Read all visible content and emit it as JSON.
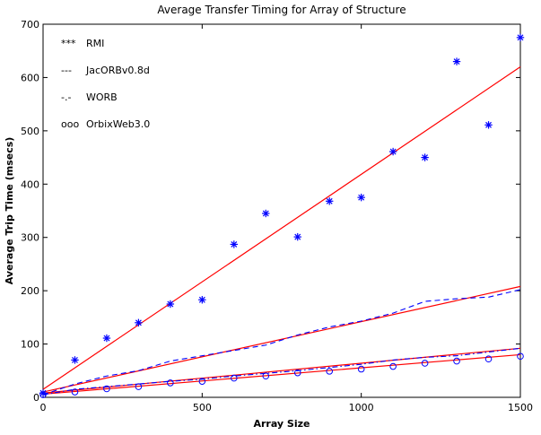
{
  "chart_data": {
    "type": "scatter",
    "title": "Average Transfer Timing for Array of Structure",
    "xlabel": "Array Size",
    "ylabel": "Average Trip Time (msecs)",
    "xlim": [
      0,
      1500
    ],
    "ylim": [
      0,
      700
    ],
    "xticks": [
      0,
      500,
      1000,
      1500
    ],
    "yticks": [
      0,
      100,
      200,
      300,
      400,
      500,
      600,
      700
    ],
    "xtick_labels": [
      "0",
      "500",
      "1000",
      "1500"
    ],
    "ytick_labels": [
      "0",
      "100",
      "200",
      "300",
      "400",
      "500",
      "600",
      "700"
    ],
    "grid": false,
    "legend_position": "top-left",
    "legend": [
      {
        "marker": "***",
        "label": "RMI"
      },
      {
        "marker": "---",
        "label": "JacORBv0.8d"
      },
      {
        "marker": "-.-",
        "label": "WORB"
      },
      {
        "marker": "ooo",
        "label": "OrbixWeb3.0"
      }
    ],
    "series": [
      {
        "name": "RMI",
        "style": "star",
        "color": "#0000ff",
        "x": [
          0,
          100,
          200,
          300,
          400,
          500,
          600,
          700,
          800,
          900,
          1000,
          1100,
          1200,
          1300,
          1400,
          1500
        ],
        "y": [
          8,
          70,
          111,
          140,
          175,
          183,
          287,
          345,
          301,
          368,
          375,
          461,
          450,
          630,
          511,
          675
        ]
      },
      {
        "name": "JacORBv0.8d",
        "style": "dashed",
        "color": "#0000ff",
        "x": [
          0,
          100,
          200,
          300,
          400,
          500,
          600,
          700,
          800,
          900,
          1000,
          1100,
          1200,
          1300,
          1400,
          1500
        ],
        "y": [
          5,
          25,
          40,
          50,
          68,
          78,
          88,
          98,
          117,
          132,
          143,
          158,
          180,
          185,
          188,
          202
        ]
      },
      {
        "name": "WORB",
        "style": "dashdot",
        "color": "#0000ff",
        "x": [
          0,
          100,
          200,
          300,
          400,
          500,
          600,
          700,
          800,
          900,
          1000,
          1100,
          1200,
          1300,
          1400,
          1500
        ],
        "y": [
          5,
          15,
          20,
          25,
          30,
          34,
          40,
          45,
          50,
          56,
          62,
          70,
          75,
          78,
          85,
          92
        ]
      },
      {
        "name": "OrbixWeb3.0",
        "style": "circle",
        "color": "#0000ff",
        "x": [
          0,
          100,
          200,
          300,
          400,
          500,
          600,
          700,
          800,
          900,
          1000,
          1100,
          1200,
          1300,
          1400,
          1500
        ],
        "y": [
          5,
          10,
          16,
          20,
          27,
          30,
          36,
          40,
          46,
          49,
          53,
          58,
          64,
          68,
          72,
          77
        ]
      }
    ],
    "fit_lines": [
      {
        "color": "#ff0000",
        "x": [
          0,
          1500
        ],
        "y": [
          15,
          620
        ]
      },
      {
        "color": "#ff0000",
        "x": [
          0,
          1500
        ],
        "y": [
          10,
          208
        ]
      },
      {
        "color": "#ff0000",
        "x": [
          0,
          1500
        ],
        "y": [
          8,
          92
        ]
      },
      {
        "color": "#ff0000",
        "x": [
          0,
          1500
        ],
        "y": [
          6,
          80
        ]
      }
    ]
  }
}
